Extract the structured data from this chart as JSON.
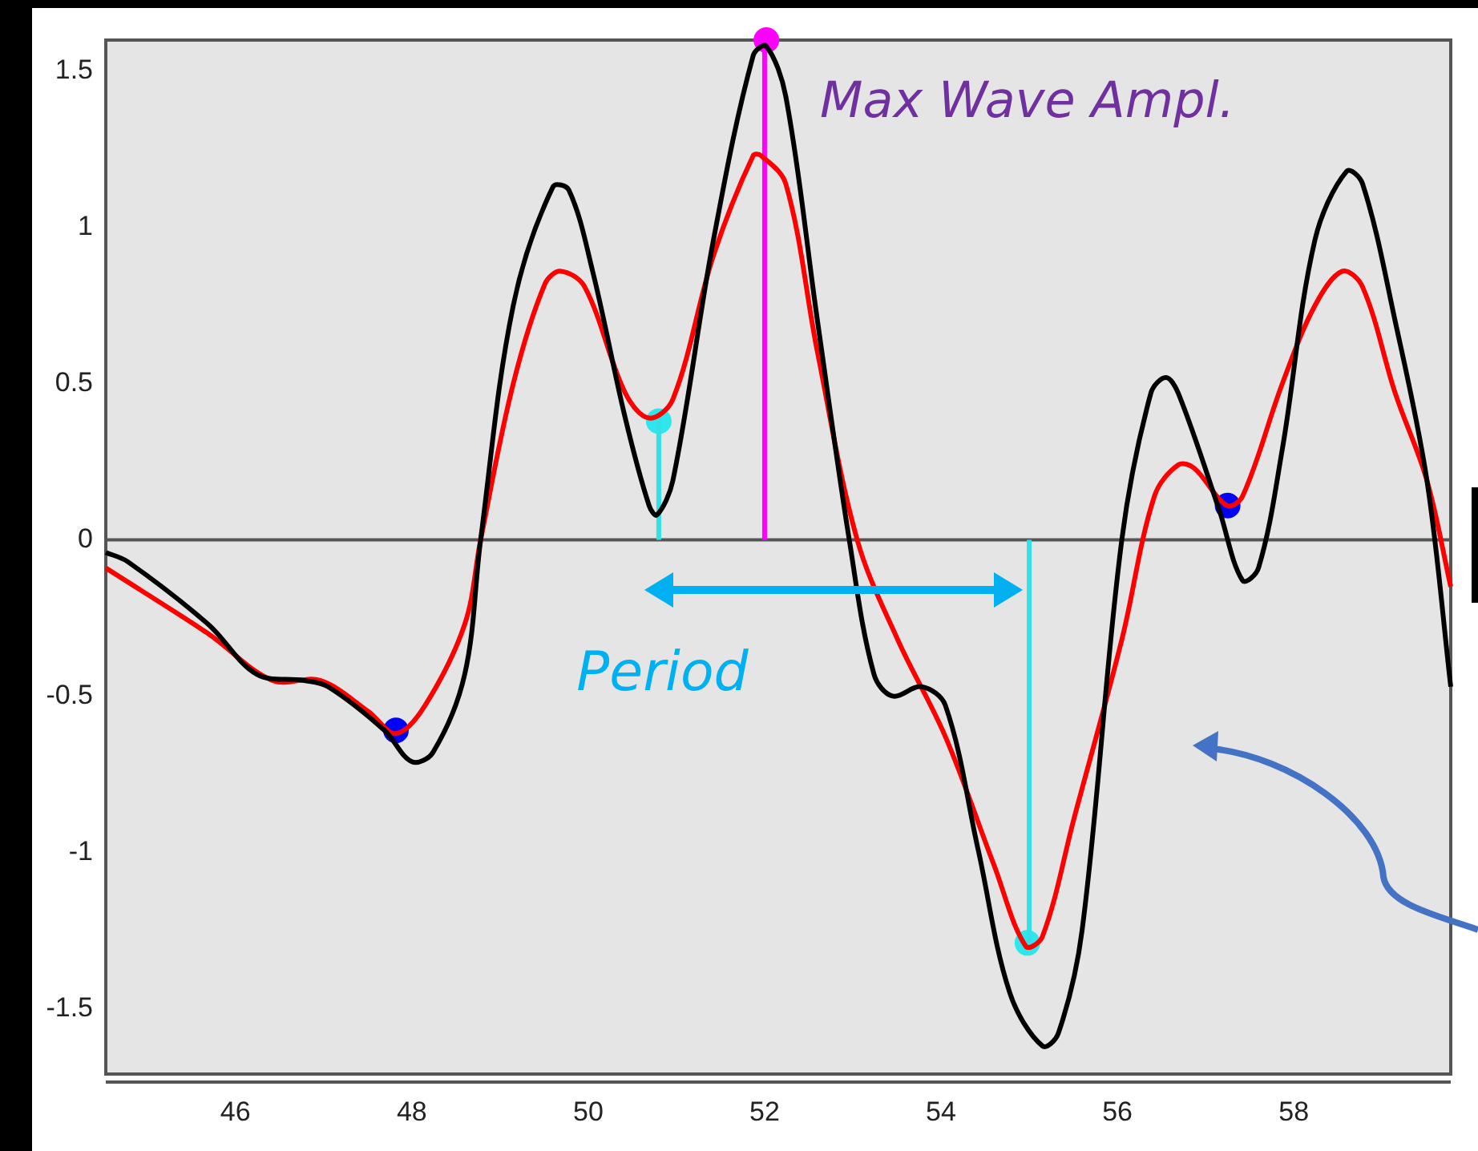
{
  "chart_data": {
    "type": "line",
    "xlim": [
      44.53,
      59.78
    ],
    "ylim": [
      -1.71,
      1.6
    ],
    "xticks": [
      46,
      48,
      50,
      52,
      54,
      56,
      58
    ],
    "yticks": [
      -1.5,
      -1,
      -0.5,
      0,
      0.5,
      1,
      1.5
    ],
    "grid": false,
    "legend": false,
    "ref_lines": [
      {
        "axis": "y",
        "value": 0,
        "color": "#555555"
      }
    ],
    "annotations": [
      "Max Wave Ampl.",
      "Period"
    ],
    "series": [
      {
        "type": "line",
        "color": "#000000",
        "marker": "none",
        "x": [
          44.53,
          44.78,
          45.69,
          46.24,
          46.78,
          47.05,
          47.69,
          48,
          48.24,
          48.6,
          48.78,
          49.15,
          49.6,
          49.78,
          50.05,
          50.42,
          50.69,
          50.78,
          50.96,
          51.42,
          51.87,
          52.02,
          52.24,
          52.6,
          52.96,
          53.24,
          53.45,
          53.78,
          54.05,
          54.42,
          54.78,
          55.15,
          55.33,
          55.6,
          56.05,
          56.38,
          56.55,
          56.69,
          57.15,
          57.42,
          57.6,
          57.87,
          58.24,
          58.6,
          58.78,
          59.15,
          59.51,
          59.78
        ],
        "values": [
          -0.04,
          -0.07,
          -0.27,
          -0.43,
          -0.45,
          -0.47,
          -0.61,
          -0.71,
          -0.68,
          -0.43,
          0,
          0.75,
          1.13,
          1.12,
          0.86,
          0.39,
          0.11,
          0.08,
          0.19,
          0.96,
          1.55,
          1.58,
          1.42,
          0.7,
          0,
          -0.43,
          -0.5,
          -0.47,
          -0.53,
          -0.99,
          -1.45,
          -1.62,
          -1.58,
          -1.25,
          0,
          0.47,
          0.52,
          0.47,
          0.1,
          -0.13,
          -0.09,
          0.29,
          0.96,
          1.18,
          1.14,
          0.7,
          0.19,
          -0.47
        ]
      },
      {
        "type": "line",
        "color": "#ff0000",
        "marker": "none",
        "x": [
          44.53,
          45.69,
          46.42,
          46.96,
          47.51,
          47.82,
          48.15,
          48.6,
          48.78,
          49.15,
          49.51,
          49.69,
          49.96,
          50.42,
          50.69,
          50.96,
          51.42,
          51.87,
          51.96,
          52.24,
          52.6,
          53.05,
          53.51,
          54.05,
          54.6,
          54.96,
          55.15,
          55.51,
          56.05,
          56.42,
          56.69,
          56.87,
          57.24,
          57.42,
          57.87,
          58.24,
          58.55,
          58.78,
          59.15,
          59.51,
          59.78
        ],
        "values": [
          -0.09,
          -0.3,
          -0.45,
          -0.45,
          -0.55,
          -0.62,
          -0.53,
          -0.27,
          0,
          0.5,
          0.82,
          0.86,
          0.81,
          0.47,
          0.39,
          0.45,
          0.91,
          1.23,
          1.23,
          1.14,
          0.6,
          0,
          -0.32,
          -0.63,
          -1.04,
          -1.3,
          -1.27,
          -0.89,
          -0.32,
          0.14,
          0.24,
          0.23,
          0.11,
          0.14,
          0.5,
          0.75,
          0.86,
          0.81,
          0.47,
          0.19,
          -0.15
        ]
      },
      {
        "type": "line",
        "color": "#33e0e8",
        "marker": "none",
        "x": [
          50.8,
          50.8
        ],
        "values": [
          0.38,
          0
        ]
      },
      {
        "type": "line",
        "color": "#ff00ff",
        "marker": "none",
        "x": [
          52,
          52
        ],
        "values": [
          1.6,
          0
        ]
      },
      {
        "type": "line",
        "color": "#33e0e8",
        "marker": "none",
        "x": [
          55,
          55
        ],
        "values": [
          -1.29,
          0
        ]
      },
      {
        "type": "scatter",
        "color": "#0000ff",
        "marker": "circle",
        "x": [
          47.82,
          57.25
        ],
        "values": [
          -0.61,
          0.11
        ]
      },
      {
        "type": "scatter",
        "color": "#2ee6ec",
        "marker": "circle",
        "x": [
          50.8,
          54.98
        ],
        "values": [
          0.38,
          -1.29
        ]
      },
      {
        "type": "scatter",
        "color": "#ff00ff",
        "marker": "circle",
        "x": [
          52.02
        ],
        "values": [
          1.6
        ]
      }
    ]
  }
}
